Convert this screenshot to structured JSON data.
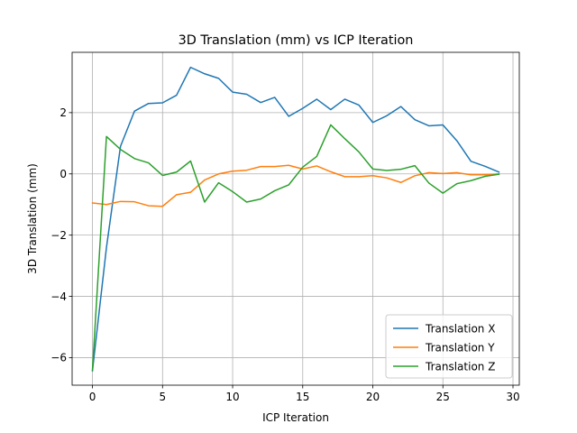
{
  "chart_data": {
    "type": "line",
    "title": "3D Translation (mm) vs ICP Iteration",
    "xlabel": "ICP Iteration",
    "ylabel": "3D Translation (mm)",
    "xlim": [
      -1.45,
      30.45
    ],
    "ylim": [
      -6.9,
      3.97
    ],
    "xticks": [
      0,
      5,
      10,
      15,
      20,
      25,
      30
    ],
    "xtick_labels": [
      "0",
      "5",
      "10",
      "15",
      "20",
      "25",
      "30"
    ],
    "yticks": [
      -6,
      -4,
      -2,
      0,
      2
    ],
    "ytick_labels": [
      "−6",
      "−4",
      "−2",
      "0",
      "2"
    ],
    "grid": true,
    "legend_position": "lower-right",
    "x": [
      0,
      1,
      2,
      3,
      4,
      5,
      6,
      7,
      8,
      9,
      10,
      11,
      12,
      13,
      14,
      15,
      16,
      17,
      18,
      19,
      20,
      21,
      22,
      23,
      24,
      25,
      26,
      27,
      28,
      29
    ],
    "series": [
      {
        "name": "Translation X",
        "color": "#1f77b4",
        "values": [
          -6.43,
          -2.4,
          0.9,
          2.05,
          2.3,
          2.32,
          2.57,
          3.48,
          3.27,
          3.12,
          2.67,
          2.6,
          2.33,
          2.5,
          1.88,
          2.14,
          2.44,
          2.1,
          2.44,
          2.25,
          1.68,
          1.9,
          2.2,
          1.77,
          1.57,
          1.6,
          1.08,
          0.41,
          0.25,
          0.06
        ]
      },
      {
        "name": "Translation Y",
        "color": "#ff7f0e",
        "values": [
          -0.95,
          -1.0,
          -0.9,
          -0.91,
          -1.04,
          -1.06,
          -0.68,
          -0.6,
          -0.2,
          0.0,
          0.09,
          0.12,
          0.24,
          0.24,
          0.28,
          0.16,
          0.26,
          0.07,
          -0.09,
          -0.09,
          -0.06,
          -0.13,
          -0.28,
          -0.06,
          0.04,
          0.01,
          0.04,
          -0.03,
          -0.03,
          0.0
        ]
      },
      {
        "name": "Translation Z",
        "color": "#2ca02c",
        "values": [
          -6.4,
          1.22,
          0.8,
          0.5,
          0.36,
          -0.05,
          0.06,
          0.42,
          -0.92,
          -0.29,
          -0.58,
          -0.92,
          -0.82,
          -0.55,
          -0.36,
          0.22,
          0.57,
          1.6,
          1.15,
          0.72,
          0.16,
          0.11,
          0.15,
          0.27,
          -0.3,
          -0.63,
          -0.32,
          -0.22,
          -0.08,
          -0.01
        ]
      }
    ]
  }
}
